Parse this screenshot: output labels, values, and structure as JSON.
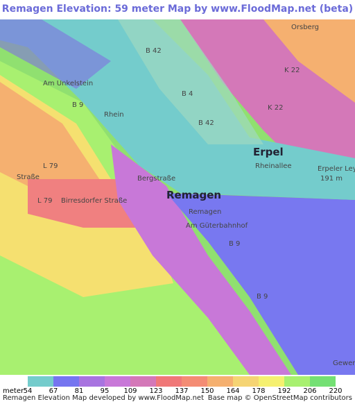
{
  "header": {
    "title": "Remagen Elevation: 59 meter Map by www.FloodMap.net (beta)"
  },
  "map_labels": [
    "Orsberg",
    "B 42",
    "B 4",
    "B 42",
    "K 22",
    "K 22",
    "Am Unkelstein",
    "B 9",
    "Rhein",
    "Erpel",
    "Rheinallee",
    "Erpeler Ley",
    "191 m",
    "L 79",
    "Straße",
    "L 79",
    "Birresdorfer Straße",
    "Bergstraße",
    "Remagen",
    "Remagen",
    "Am Güterbahnhof",
    "B 9",
    "B 9",
    "Gewer"
  ],
  "legend": {
    "unit": "meter",
    "values": [
      54,
      67,
      81,
      95,
      109,
      123,
      137,
      150,
      164,
      178,
      192,
      206,
      220
    ],
    "colors": [
      "#74cccc",
      "#7575f0",
      "#a874e0",
      "#c878d8",
      "#d478b8",
      "#f07878",
      "#f48c74",
      "#f5b070",
      "#f5d474",
      "#f5f070",
      "#a8f070",
      "#74e074"
    ]
  },
  "footer": {
    "left": "Remagen Elevation Map developed by www.FloodMap.net",
    "right": "Base map © OpenStreetMap contributors"
  }
}
